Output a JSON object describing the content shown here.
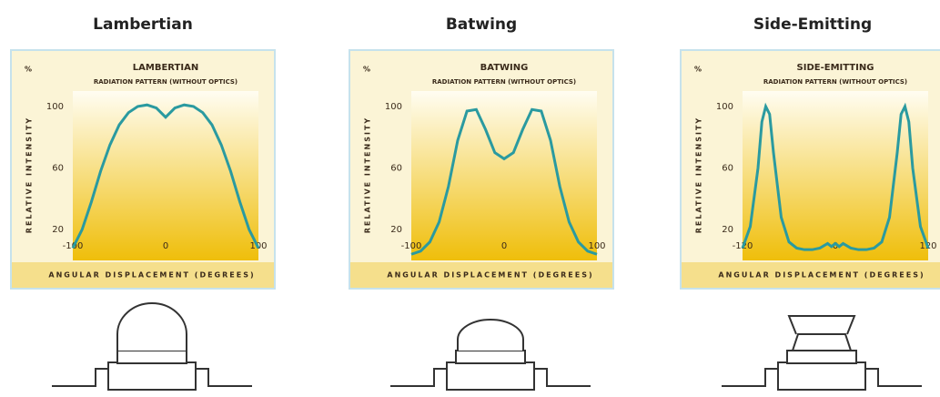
{
  "chart_data": [
    {
      "type": "line",
      "heading": "Lambertian",
      "title": "LAMBERTIAN",
      "subtitle": "RADIATION PATTERN (WITHOUT OPTICS)",
      "y_label": "RELATIVE INTENSITY",
      "y_unit": "%",
      "x_label": "ANGULAR DISPLACEMENT (DEGREES)",
      "xlim": [
        -100,
        100
      ],
      "xticks": [
        -100,
        0,
        100
      ],
      "ylim": [
        0,
        110
      ],
      "yticks": [
        20,
        60,
        100
      ],
      "color": "#2a9aa0",
      "x": [
        -100,
        -90,
        -80,
        -70,
        -60,
        -50,
        -40,
        -30,
        -20,
        -10,
        0,
        10,
        20,
        30,
        40,
        50,
        60,
        70,
        80,
        90,
        100
      ],
      "values": [
        8,
        20,
        38,
        58,
        75,
        88,
        96,
        100,
        101,
        99,
        93,
        99,
        101,
        100,
        96,
        88,
        75,
        58,
        38,
        20,
        8
      ]
    },
    {
      "type": "line",
      "heading": "Batwing",
      "title": "BATWING",
      "subtitle": "RADIATION PATTERN (WITHOUT OPTICS)",
      "y_label": "RELATIVE INTENSITY",
      "y_unit": "%",
      "x_label": "ANGULAR DISPLACEMENT (DEGREES)",
      "xlim": [
        -100,
        100
      ],
      "xticks": [
        -100,
        0,
        100
      ],
      "ylim": [
        0,
        110
      ],
      "yticks": [
        20,
        60,
        100
      ],
      "color": "#2a9aa0",
      "x": [
        -100,
        -90,
        -80,
        -70,
        -60,
        -50,
        -40,
        -30,
        -20,
        -10,
        0,
        10,
        20,
        30,
        40,
        50,
        60,
        70,
        80,
        90,
        100
      ],
      "values": [
        4,
        6,
        12,
        25,
        48,
        78,
        97,
        98,
        85,
        70,
        66,
        70,
        85,
        98,
        97,
        78,
        48,
        25,
        12,
        6,
        4
      ]
    },
    {
      "type": "line",
      "heading": "Side-Emitting",
      "title": "SIDE-EMITTING",
      "subtitle": "RADIATION PATTERN (WITHOUT OPTICS)",
      "y_label": "RELATIVE INTENSITY",
      "y_unit": "%",
      "x_label": "ANGULAR DISPLACEMENT (DEGREES)",
      "xlim": [
        -120,
        120
      ],
      "xticks": [
        -120,
        0,
        120
      ],
      "ylim": [
        0,
        110
      ],
      "yticks": [
        20,
        60,
        100
      ],
      "color": "#2a9aa0",
      "x": [
        -120,
        -110,
        -100,
        -95,
        -90,
        -85,
        -80,
        -70,
        -60,
        -50,
        -40,
        -30,
        -20,
        -10,
        -5,
        0,
        5,
        10,
        20,
        30,
        40,
        50,
        60,
        70,
        80,
        85,
        90,
        95,
        100,
        110,
        120
      ],
      "values": [
        8,
        22,
        60,
        90,
        100,
        95,
        70,
        28,
        12,
        8,
        7,
        7,
        8,
        11,
        9,
        11,
        9,
        11,
        8,
        7,
        7,
        8,
        12,
        28,
        70,
        95,
        100,
        90,
        60,
        22,
        8
      ]
    }
  ]
}
